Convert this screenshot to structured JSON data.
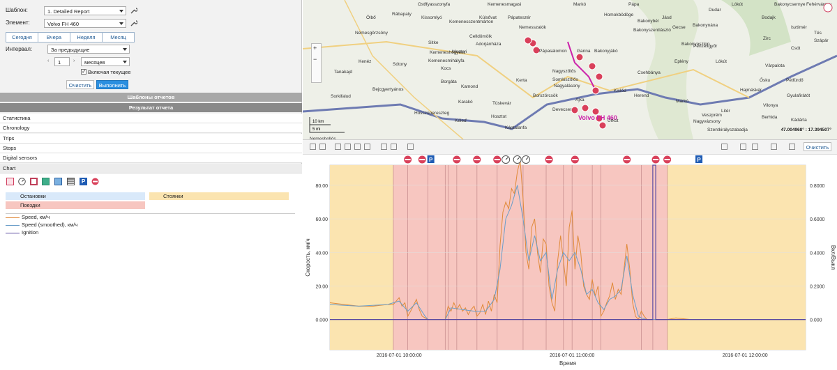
{
  "form": {
    "template_label": "Шаблон:",
    "template_value": "1. Detailed Report",
    "element_label": "Элемент:",
    "element_value": "Volvo FH 460",
    "periods": [
      "Сегодня",
      "Вчера",
      "Неделя",
      "Месяц"
    ],
    "interval_label": "Интервал:",
    "interval_value": "За предыдущие",
    "count_value": "1",
    "unit_value": "месяцев",
    "include_current_label": "Включая текущее",
    "include_current_checked": true,
    "clear_label": "Очистить",
    "run_label": "Выполнить"
  },
  "bars": {
    "templates": "Шаблоны отчетов",
    "result": "Результат отчета"
  },
  "sections": [
    "Статистика",
    "Chronology",
    "Trips",
    "Stops",
    "Digital sensors",
    "Chart"
  ],
  "chart_icons": [
    "fuel-icon",
    "gauge-icon",
    "door-icon",
    "flag-icon",
    "image-icon",
    "film-icon",
    "parking-icon",
    "stop-icon"
  ],
  "legend": {
    "stops": "Остановки",
    "parkings": "Стоянки",
    "trips": "Поездки",
    "speed": "Speed, км/ч",
    "speed_smoothed": "Speed (smoothed), км/ч",
    "ignition": "Ignition"
  },
  "map": {
    "places": [
      "Ostffyasszonyfa",
      "Kemenesmagasi",
      "Markó",
      "Pápa",
      "Dudar",
      "Lókút",
      "Bakonycsernye",
      "Fehérvárcsu",
      "Rábapaty",
      "Ölbő",
      "Kissomlyó",
      "Kúlsővat",
      "Pápateszér",
      "Homokbödöge",
      "Jásd",
      "Bodajk",
      "Nemesszalók",
      "Kemenesszentmárton",
      "Celldömölk",
      "Nemesgörzsöny",
      "Gecse",
      "Bakonybél",
      "Bakonynána",
      "Isztimér",
      "Sitke",
      "Adorjánháza",
      "Pápasalomon",
      "Ganna",
      "Bakonyjákó",
      "Bakonyszentlászló",
      "Pénzesgyőr",
      "Zirc",
      "Tés",
      "Kemeneshőgyész",
      "Bakonyoszlop",
      "Szápár",
      "Mesteri",
      "Kenéz",
      "Kemenesmihályfa",
      "Csót",
      "Eplény",
      "Lókút",
      "Várpalota",
      "Sótony",
      "Kocs",
      "Nagyszőlős",
      "Csehbánya",
      "Ősku",
      "Pétfürdő",
      "Tanakajd",
      "Borgáta",
      "Kamond",
      "Kerta",
      "Somlószőlős",
      "Nagyalásony",
      "Kislőd",
      "Herend",
      "Márkó",
      "Hajmáskér",
      "Sorkifalud",
      "Bejcgyertyános",
      "Karakó",
      "Tüskevár",
      "Borszörcsök",
      "Devecser",
      "Ajka",
      "Úrkút",
      "Veszprém",
      "Litér",
      "Gyulafirátót",
      "Vilonya",
      "Hosszúpereszteg",
      "Kéleď",
      "Hosztot",
      "Káptalanfa",
      "Szentkirályszabadja",
      "Berhida",
      "Nagyvázsony",
      "Kádárta",
      "Nemeshollós"
    ],
    "vehicle_label": "Volvo FH 460",
    "scale_km": "10 km",
    "scale_mi": "5 mi",
    "coords": "47.004968° : 17.394507°"
  },
  "toolbar": {
    "clear_label": "Очистить"
  },
  "colors": {
    "trip": "#f7c6c0",
    "parking": "#fbe4b0",
    "speed": "#e08a3a",
    "speed_smoothed": "#6a9ec9",
    "ignition": "#5b4aa0",
    "stop_red": "#d9405a",
    "parking_blue": "#1f5cb4"
  },
  "chart_data": {
    "type": "line",
    "xlabel": "Время",
    "ylabel": "Скорость, км/ч",
    "y2label": "Вкл/Выкл",
    "ylim": [
      -18,
      92
    ],
    "y2lim": [
      -0.18,
      0.92
    ],
    "yticks": [
      "0.000",
      "20.00",
      "40.00",
      "60.00",
      "80.00"
    ],
    "y2ticks": [
      "0.000",
      "0.2000",
      "0.4000",
      "0.6000",
      "0.8000"
    ],
    "xlim": [
      0,
      165
    ],
    "xticks": [
      {
        "t": 24,
        "label": "2016-07-01 10:00:00"
      },
      {
        "t": 84,
        "label": "2016-07-01 11:00:00"
      },
      {
        "t": 144,
        "label": "2016-07-01 12:00:00"
      }
    ],
    "parking_intervals": [
      [
        0,
        22
      ],
      [
        117,
        165
      ]
    ],
    "trip_intervals": [
      [
        22,
        117
      ]
    ],
    "event_lines": [
      22,
      27,
      34,
      40,
      41,
      44,
      51,
      58,
      67,
      75,
      81,
      84,
      91,
      94,
      108,
      112,
      117
    ],
    "markers": [
      {
        "t": 27,
        "type": "stop"
      },
      {
        "t": 32,
        "type": "stop"
      },
      {
        "t": 35,
        "type": "parking"
      },
      {
        "t": 44,
        "type": "stop"
      },
      {
        "t": 51,
        "type": "stop"
      },
      {
        "t": 58,
        "type": "stop"
      },
      {
        "t": 61,
        "type": "gauge"
      },
      {
        "t": 65,
        "type": "gauge"
      },
      {
        "t": 68,
        "type": "gauge"
      },
      {
        "t": 76,
        "type": "stop"
      },
      {
        "t": 85,
        "type": "stop"
      },
      {
        "t": 103,
        "type": "stop"
      },
      {
        "t": 113,
        "type": "stop"
      },
      {
        "t": 117,
        "type": "stop"
      },
      {
        "t": 128,
        "type": "parking"
      }
    ],
    "series": [
      {
        "name": "Speed, км/ч",
        "points": [
          [
            0,
            10
          ],
          [
            5,
            9
          ],
          [
            10,
            8
          ],
          [
            15,
            8
          ],
          [
            20,
            9
          ],
          [
            22,
            9
          ],
          [
            24,
            13
          ],
          [
            25,
            8
          ],
          [
            26,
            10
          ],
          [
            27,
            2
          ],
          [
            28,
            5
          ],
          [
            30,
            12
          ],
          [
            31,
            6
          ],
          [
            32,
            2
          ],
          [
            33,
            1
          ],
          [
            34,
            0
          ],
          [
            40,
            0
          ],
          [
            41,
            8
          ],
          [
            42,
            5
          ],
          [
            43,
            10
          ],
          [
            44,
            6
          ],
          [
            45,
            9
          ],
          [
            46,
            5
          ],
          [
            47,
            7
          ],
          [
            48,
            3
          ],
          [
            49,
            6
          ],
          [
            50,
            8
          ],
          [
            51,
            2
          ],
          [
            52,
            4
          ],
          [
            53,
            9
          ],
          [
            54,
            3
          ],
          [
            55,
            11
          ],
          [
            56,
            5
          ],
          [
            57,
            15
          ],
          [
            58,
            10
          ],
          [
            59,
            44
          ],
          [
            60,
            64
          ],
          [
            61,
            70
          ],
          [
            62,
            66
          ],
          [
            63,
            78
          ],
          [
            64,
            75
          ],
          [
            65,
            88
          ],
          [
            66,
            95
          ],
          [
            67,
            72
          ],
          [
            68,
            40
          ],
          [
            69,
            30
          ],
          [
            70,
            55
          ],
          [
            71,
            60
          ],
          [
            72,
            40
          ],
          [
            73,
            28
          ],
          [
            74,
            48
          ],
          [
            75,
            45
          ],
          [
            76,
            20
          ],
          [
            77,
            10
          ],
          [
            78,
            5
          ],
          [
            79,
            35
          ],
          [
            80,
            50
          ],
          [
            81,
            35
          ],
          [
            82,
            20
          ],
          [
            83,
            55
          ],
          [
            84,
            65
          ],
          [
            85,
            30
          ],
          [
            86,
            50
          ],
          [
            87,
            40
          ],
          [
            88,
            20
          ],
          [
            89,
            15
          ],
          [
            90,
            12
          ],
          [
            91,
            24
          ],
          [
            92,
            14
          ],
          [
            93,
            20
          ],
          [
            94,
            2
          ],
          [
            95,
            5
          ],
          [
            96,
            10
          ],
          [
            97,
            14
          ],
          [
            98,
            22
          ],
          [
            99,
            12
          ],
          [
            100,
            18
          ],
          [
            101,
            15
          ],
          [
            102,
            30
          ],
          [
            103,
            45
          ],
          [
            104,
            30
          ],
          [
            105,
            10
          ],
          [
            106,
            2
          ],
          [
            107,
            0
          ],
          [
            108,
            5
          ],
          [
            109,
            2
          ],
          [
            110,
            0
          ],
          [
            112,
            0
          ],
          [
            117,
            0
          ],
          [
            120,
            1
          ],
          [
            125,
            0
          ],
          [
            165,
            0
          ]
        ]
      },
      {
        "name": "Speed (smoothed), км/ч",
        "points": [
          [
            0,
            9
          ],
          [
            10,
            8
          ],
          [
            20,
            9
          ],
          [
            24,
            11
          ],
          [
            27,
            5
          ],
          [
            30,
            10
          ],
          [
            33,
            2
          ],
          [
            34,
            0
          ],
          [
            40,
            0
          ],
          [
            42,
            7
          ],
          [
            46,
            6
          ],
          [
            50,
            5
          ],
          [
            54,
            5
          ],
          [
            57,
            12
          ],
          [
            59,
            30
          ],
          [
            61,
            60
          ],
          [
            63,
            68
          ],
          [
            65,
            80
          ],
          [
            67,
            60
          ],
          [
            69,
            35
          ],
          [
            71,
            50
          ],
          [
            73,
            35
          ],
          [
            75,
            40
          ],
          [
            77,
            12
          ],
          [
            79,
            30
          ],
          [
            81,
            40
          ],
          [
            83,
            35
          ],
          [
            85,
            40
          ],
          [
            87,
            30
          ],
          [
            89,
            15
          ],
          [
            91,
            18
          ],
          [
            93,
            10
          ],
          [
            95,
            6
          ],
          [
            97,
            12
          ],
          [
            99,
            14
          ],
          [
            101,
            18
          ],
          [
            103,
            38
          ],
          [
            105,
            15
          ],
          [
            107,
            2
          ],
          [
            108,
            1
          ],
          [
            110,
            0
          ],
          [
            165,
            0
          ]
        ]
      },
      {
        "name": "Ignition",
        "points": [
          [
            0,
            0
          ],
          [
            112,
            0
          ],
          [
            112,
            92
          ],
          [
            113,
            92
          ],
          [
            113,
            0
          ],
          [
            165,
            0
          ]
        ]
      }
    ]
  }
}
